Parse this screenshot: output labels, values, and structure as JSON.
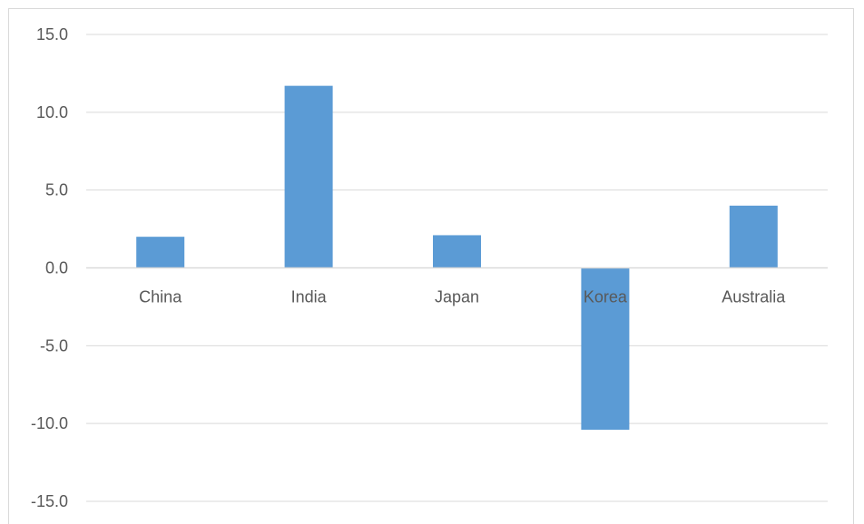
{
  "chart_data": {
    "type": "bar",
    "title": "",
    "xlabel": "",
    "ylabel": "",
    "categories": [
      "China",
      "India",
      "Japan",
      "Korea",
      "Australia"
    ],
    "values": [
      2.0,
      11.7,
      2.1,
      -10.4,
      4.0
    ],
    "ylim": [
      -15,
      15
    ],
    "yticks": [
      15,
      10,
      5,
      0,
      -5,
      -10,
      -15
    ],
    "ytick_labels": [
      "15.0",
      "10.0",
      "5.0",
      "0.0",
      "-5.0",
      "-10.0",
      "-15.0"
    ],
    "grid": true,
    "legend": "none",
    "bar_color": "#5b9bd5",
    "grid_color": "#d9d9d9",
    "label_color": "#595959"
  }
}
